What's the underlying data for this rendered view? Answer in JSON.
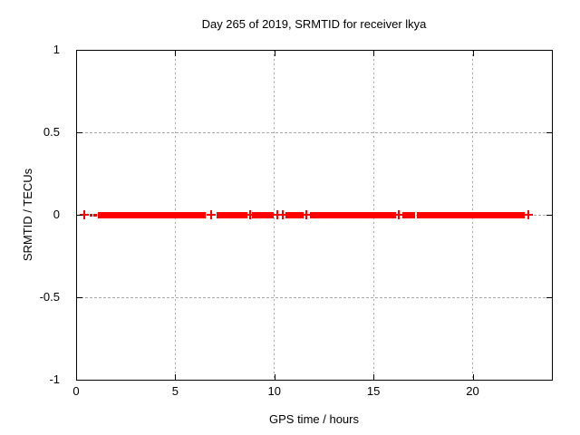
{
  "chart_data": {
    "type": "scatter",
    "title": "Day 265 of 2019, SRMTID for receiver lkya",
    "xlabel": "GPS time / hours",
    "ylabel": "SRMTID / TECUs",
    "xlim": [
      0,
      24
    ],
    "ylim": [
      -1,
      1
    ],
    "xticks": [
      0,
      5,
      10,
      15,
      20
    ],
    "yticks": [
      1,
      0.5,
      0,
      -0.5,
      -1
    ],
    "grid": true,
    "legend": "none",
    "marker": "plus",
    "colors": {
      "series": "#ff0000",
      "grid": "#a8a8a8",
      "axis": "#000000",
      "background": "#ffffff"
    },
    "series": [
      {
        "name": "SRMTID",
        "y_value": 0,
        "dense_segments_hours": [
          {
            "start": 0.7,
            "end": 0.82,
            "thin": true
          },
          {
            "start": 0.88,
            "end": 1.04,
            "thin": true
          },
          {
            "start": 1.1,
            "end": 6.54
          },
          {
            "start": 7.08,
            "end": 8.65
          },
          {
            "start": 8.88,
            "end": 9.98
          },
          {
            "start": 10.57,
            "end": 11.47
          },
          {
            "start": 11.78,
            "end": 16.14
          },
          {
            "start": 16.45,
            "end": 17.08
          },
          {
            "start": 17.2,
            "end": 22.63
          }
        ],
        "isolated_points_hours": [
          0.43,
          6.83,
          8.77,
          10.15,
          10.42,
          11.63,
          16.27,
          22.8
        ]
      }
    ]
  }
}
